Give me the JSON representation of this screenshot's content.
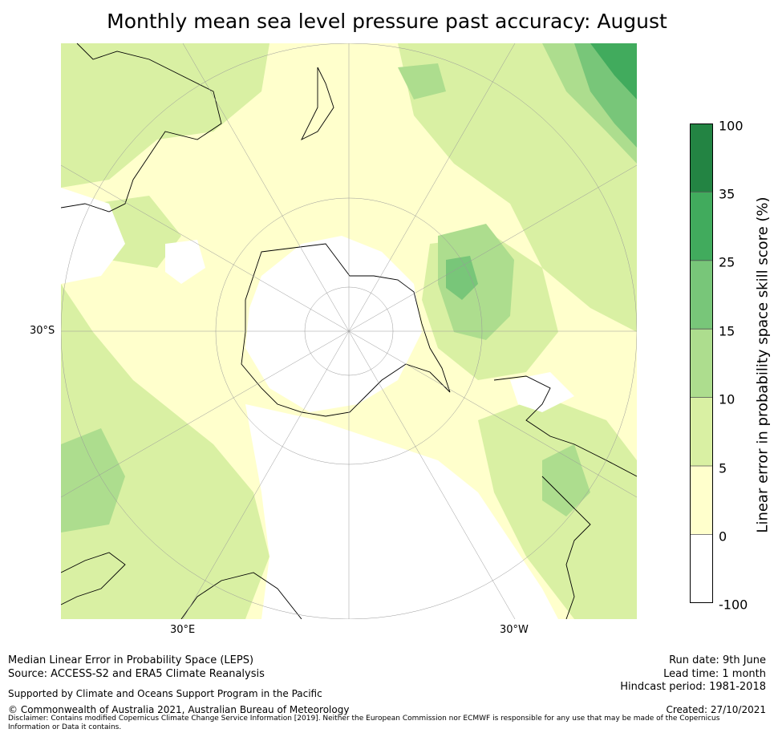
{
  "title": "Monthly mean sea level pressure past accuracy: August",
  "map": {
    "projection": "south-polar-stereographic",
    "tick_labels": {
      "lat_left": "30°S",
      "lon_bottom_left": "30°E",
      "lon_bottom_right": "30°W"
    },
    "colors": {
      "land_outline": "#000000",
      "graticule": "#999999"
    }
  },
  "colorbar": {
    "label": "Linear error in probability space skill score (%)",
    "ticks": [
      "-100",
      "0",
      "5",
      "10",
      "15",
      "25",
      "35",
      "100"
    ],
    "colors": [
      "#ffffff",
      "#ffffcc",
      "#d9f0a3",
      "#addd8e",
      "#78c679",
      "#41ab5d",
      "#238443"
    ]
  },
  "footer": {
    "line1": "Median Linear Error in Probability Space (LEPS)",
    "line2": "Source: ACCESS-S2 and ERA5 Climate Reanalysis",
    "support": "Supported by Climate and Oceans Support Program in the Pacific",
    "copyright": "© Commonwealth of Australia 2021, Australian Bureau of Meteorology",
    "disclaimer": "Disclaimer: Contains modified Copernicus Climate Change Service Information [2019]. Neither the European Commission nor ECMWF is responsible for any use that may be made of the Copernicus Information or Data it contains.",
    "run_date": "Run date: 9th June",
    "lead_time": "Lead time: 1 month",
    "hindcast": "Hindcast period: 1981-2018",
    "created": "Created: 27/10/2021"
  }
}
